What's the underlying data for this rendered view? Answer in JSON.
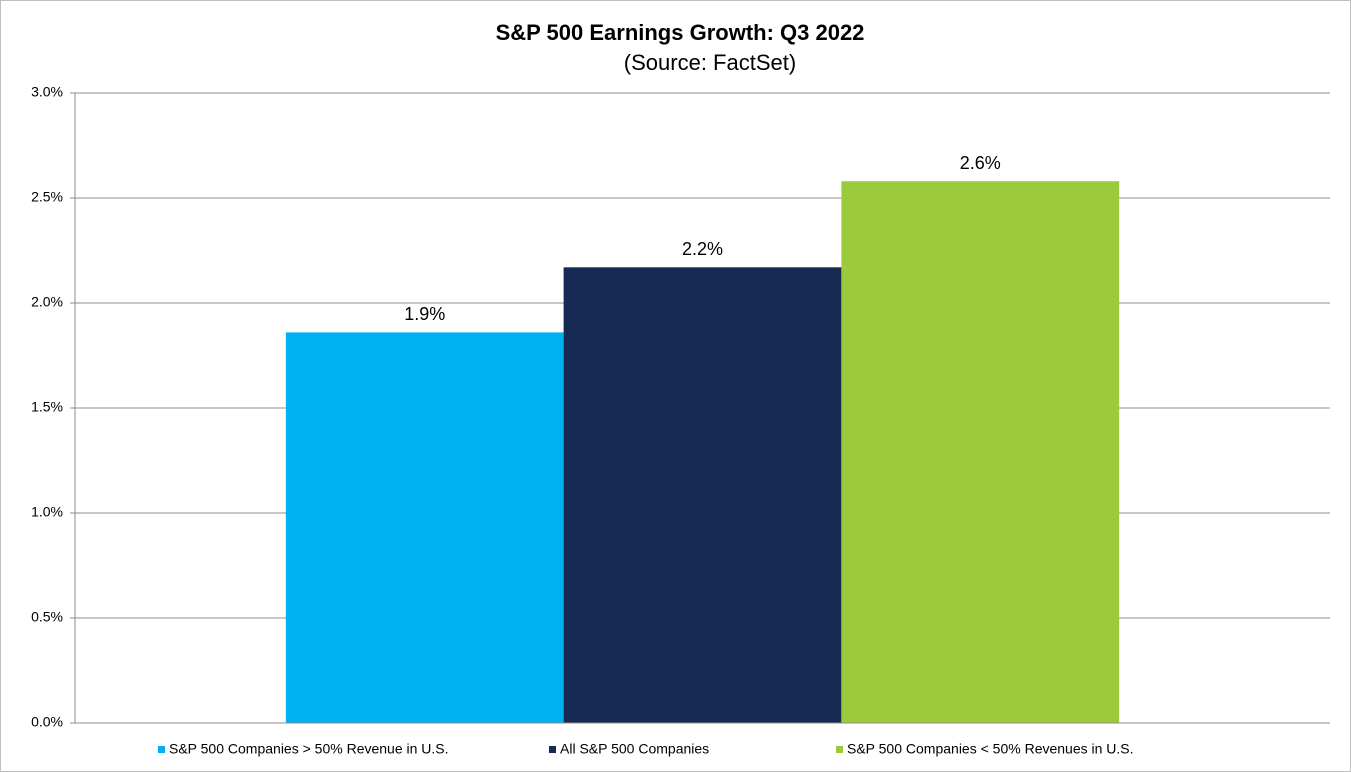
{
  "chart_data": {
    "type": "bar",
    "title": "S&P 500 Earnings Growth: Q3 2022",
    "subtitle": "(Source: FactSet)",
    "series": [
      {
        "name": "S&P 500 Companies > 50% Revenue in U.S.",
        "color": "#00b0f0",
        "values": [
          1.86
        ],
        "value_labels": [
          "1.9%"
        ]
      },
      {
        "name": "All S&P 500 Companies",
        "color": "#172a54",
        "values": [
          2.17
        ],
        "value_labels": [
          "2.2%"
        ]
      },
      {
        "name": "S&P 500 Companies < 50% Revenues in U.S.",
        "color": "#9bca3c",
        "values": [
          2.58
        ],
        "value_labels": [
          "2.6%"
        ]
      }
    ],
    "ylim": [
      0,
      3
    ],
    "yticks": [
      {
        "value": 0,
        "label": "0.0%"
      },
      {
        "value": 0.5,
        "label": "0.5%"
      },
      {
        "value": 1,
        "label": "1.0%"
      },
      {
        "value": 1.5,
        "label": "1.5%"
      },
      {
        "value": 2,
        "label": "2.0%"
      },
      {
        "value": 2.5,
        "label": "2.5%"
      },
      {
        "value": 3,
        "label": "3.0%"
      }
    ],
    "grid": true,
    "legend": "bottom"
  }
}
